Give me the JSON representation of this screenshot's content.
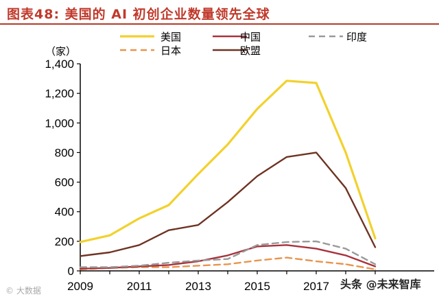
{
  "title": "图表48:  美国的 AI 初创企业数量领先全球",
  "chart_data": {
    "type": "line",
    "title": "美国的 AI 初创企业数量领先全球",
    "unit": "（家）",
    "x": [
      2009,
      2010,
      2011,
      2012,
      2013,
      2014,
      2015,
      2016,
      2017,
      2018,
      2019
    ],
    "xticks": [
      "2009",
      "2011",
      "2013",
      "2015",
      "2017"
    ],
    "yticks": [
      "0",
      "200",
      "400",
      "600",
      "800",
      "1,000",
      "1,200",
      "1,400"
    ],
    "ylim": [
      0,
      1400
    ],
    "legend_position": "top",
    "series": [
      {
        "name": "美国",
        "color": "#f2d12c",
        "dash": false,
        "values": [
          195,
          240,
          355,
          445,
          655,
          855,
          1095,
          1285,
          1270,
          800,
          220
        ]
      },
      {
        "name": "中国",
        "color": "#a8323c",
        "dash": false,
        "values": [
          15,
          20,
          30,
          40,
          65,
          105,
          165,
          175,
          150,
          105,
          30
        ]
      },
      {
        "name": "印度",
        "color": "#999999",
        "dash": true,
        "values": [
          25,
          25,
          35,
          55,
          70,
          80,
          175,
          195,
          200,
          150,
          45
        ]
      },
      {
        "name": "日本",
        "color": "#e8944c",
        "dash": true,
        "values": [
          10,
          20,
          25,
          25,
          35,
          45,
          70,
          90,
          65,
          45,
          10
        ]
      },
      {
        "name": "欧盟",
        "color": "#6e3322",
        "dash": false,
        "values": [
          100,
          125,
          175,
          275,
          310,
          465,
          640,
          770,
          800,
          560,
          160
        ]
      }
    ]
  },
  "watermarks": {
    "left": "© 大数据",
    "right": "头条 @未来智库"
  }
}
